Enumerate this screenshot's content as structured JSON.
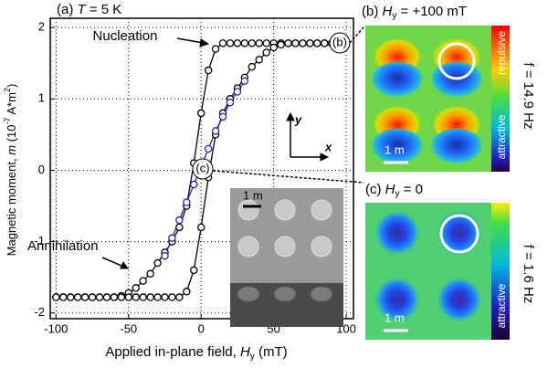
{
  "chart_data": {
    "type": "line",
    "panel_label": "(a)",
    "temp_var": "T",
    "temp_value": " = 5 K",
    "x_label": {
      "text": "Applied in-plane field,",
      "var": "H",
      "sub": "y",
      "unit": " (mT)"
    },
    "y_label": {
      "text": "Magnetic moment, ",
      "var": "m",
      "unit_pre": " (10",
      "exp1": "-7",
      "unit_mid": " A*m",
      "exp2": "2",
      "unit_post": ")"
    },
    "x": [
      -100,
      -95,
      -90,
      -85,
      -80,
      -75,
      -70,
      -65,
      -60,
      -55,
      -50,
      -45,
      -40,
      -35,
      -30,
      -25,
      -20,
      -15,
      -10,
      -5,
      0,
      5,
      10,
      15,
      20,
      25,
      30,
      35,
      40,
      45,
      50,
      55,
      60,
      65,
      70,
      75,
      80,
      85,
      90,
      95,
      100
    ],
    "series": [
      {
        "color": "#000000",
        "values": [
          -1.78,
          -1.78,
          -1.78,
          -1.78,
          -1.78,
          -1.78,
          -1.78,
          -1.78,
          -1.78,
          -1.76,
          -1.72,
          -1.65,
          -1.55,
          -1.45,
          -1.3,
          -1.15,
          -1.0,
          -0.8,
          -0.5,
          0.1,
          0.8,
          1.4,
          1.7,
          1.78,
          1.78,
          1.78,
          1.78,
          1.78,
          1.78,
          1.78,
          1.78,
          1.78,
          1.78,
          1.78,
          1.78,
          1.78,
          1.78,
          1.78,
          1.78,
          1.78,
          1.78
        ]
      },
      {
        "color": "#000000",
        "values": [
          -1.78,
          -1.78,
          -1.78,
          -1.78,
          -1.78,
          -1.78,
          -1.78,
          -1.78,
          -1.78,
          -1.78,
          -1.78,
          -1.78,
          -1.78,
          -1.78,
          -1.78,
          -1.78,
          -1.78,
          -1.78,
          -1.7,
          -1.4,
          -0.8,
          -0.1,
          0.5,
          0.8,
          1.0,
          1.15,
          1.3,
          1.45,
          1.55,
          1.65,
          1.72,
          1.76,
          1.78,
          1.78,
          1.78,
          1.78,
          1.78,
          1.78,
          1.78,
          1.78,
          1.78
        ]
      },
      {
        "color": "#2222bb",
        "values": [
          null,
          null,
          null,
          null,
          null,
          null,
          null,
          null,
          null,
          null,
          null,
          null,
          null,
          null,
          null,
          -1.2,
          -0.95,
          -0.7,
          -0.45,
          -0.2,
          0.05,
          0.3,
          0.55,
          0.75,
          0.95,
          1.1,
          1.25,
          null,
          null,
          null,
          null,
          null,
          null,
          null,
          null,
          null,
          null,
          null,
          null,
          null,
          null
        ]
      }
    ],
    "xlim": [
      -104,
      105
    ],
    "ylim": [
      -2.08,
      2.13
    ],
    "xticks": [
      -100,
      -50,
      0,
      50,
      100
    ],
    "yticks": [
      -2,
      -1,
      0,
      1,
      2
    ],
    "grid": true,
    "annotations": {
      "nucleation": "Nucleation",
      "annihilation": "Annihilation",
      "marker_b": "(b)",
      "marker_c": "(c)",
      "axis_y": "y",
      "axis_x": "x",
      "scale": "1 m"
    }
  },
  "panel_b": {
    "label": "(b)",
    "var": "H",
    "sub": "y",
    "value": " = +100 mT",
    "freq": "f = 14.9 Hz",
    "top_bar": "repulsive",
    "bottom_bar": "attractive",
    "scale": "1 m"
  },
  "panel_c": {
    "label": "(c)",
    "var": "H",
    "sub": "y",
    "value": " = 0",
    "freq": "f = 1.6 Hz",
    "bar": "attractive",
    "scale": "1 m"
  }
}
